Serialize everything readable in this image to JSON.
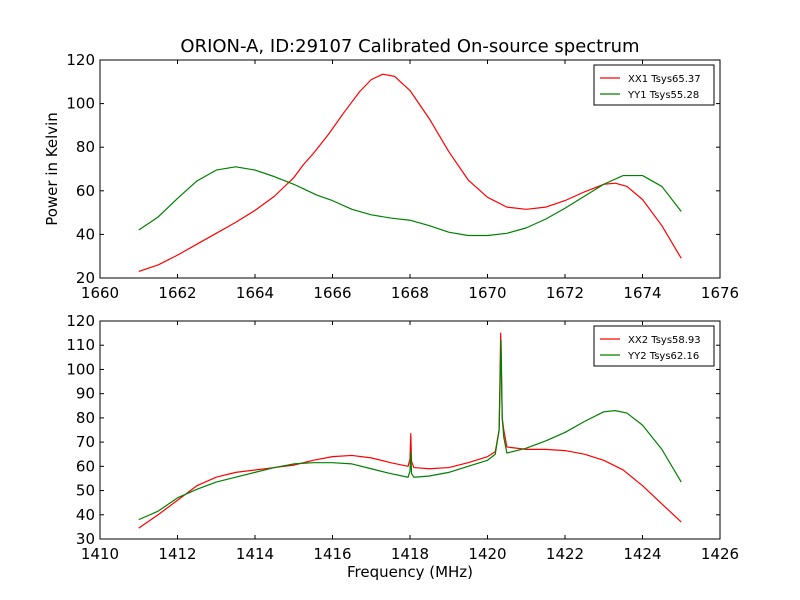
{
  "figure": {
    "title": "ORION-A, ID:29107 Calibrated On-source spectrum"
  },
  "chart_data": [
    {
      "type": "line",
      "title": "ORION-A, ID:29107 Calibrated On-source spectrum",
      "xlabel": "",
      "ylabel": "Power in Kelvin",
      "xlim": [
        1660,
        1676
      ],
      "ylim": [
        20,
        120
      ],
      "xticks": [
        1660,
        1662,
        1664,
        1666,
        1668,
        1670,
        1672,
        1674,
        1676
      ],
      "yticks": [
        20,
        40,
        60,
        80,
        100,
        120
      ],
      "grid": false,
      "legend_position": "top-right",
      "series": [
        {
          "name": "XX1 Tsys65.37",
          "color": "#ff0000",
          "points": [
            [
              1661.0,
              23
            ],
            [
              1661.5,
              26
            ],
            [
              1662.0,
              30.5
            ],
            [
              1662.5,
              35.5
            ],
            [
              1663.0,
              40.5
            ],
            [
              1663.5,
              45.5
            ],
            [
              1664.0,
              51
            ],
            [
              1664.5,
              57.5
            ],
            [
              1665.0,
              66
            ],
            [
              1665.25,
              72
            ],
            [
              1665.5,
              77
            ],
            [
              1665.9,
              86
            ],
            [
              1666.3,
              96
            ],
            [
              1666.7,
              105.5
            ],
            [
              1667.0,
              111
            ],
            [
              1667.3,
              113.5
            ],
            [
              1667.6,
              112.5
            ],
            [
              1668.0,
              106
            ],
            [
              1668.5,
              93
            ],
            [
              1669.0,
              78
            ],
            [
              1669.5,
              65
            ],
            [
              1670.0,
              57
            ],
            [
              1670.5,
              52.5
            ],
            [
              1671.0,
              51.5
            ],
            [
              1671.5,
              52.5
            ],
            [
              1672.0,
              55.5
            ],
            [
              1672.5,
              59.5
            ],
            [
              1673.0,
              63
            ],
            [
              1673.3,
              63.5
            ],
            [
              1673.6,
              62
            ],
            [
              1674.0,
              56
            ],
            [
              1674.5,
              44
            ],
            [
              1675.0,
              29
            ]
          ]
        },
        {
          "name": "YY1 Tsys55.28",
          "color": "#008000",
          "points": [
            [
              1661.0,
              42
            ],
            [
              1661.5,
              48
            ],
            [
              1662.0,
              56.5
            ],
            [
              1662.5,
              64.5
            ],
            [
              1663.0,
              69.5
            ],
            [
              1663.5,
              71
            ],
            [
              1664.0,
              69.5
            ],
            [
              1664.5,
              66.5
            ],
            [
              1665.0,
              63
            ],
            [
              1665.3,
              60.5
            ],
            [
              1665.6,
              58
            ],
            [
              1666.0,
              55.5
            ],
            [
              1666.5,
              51.5
            ],
            [
              1667.0,
              49
            ],
            [
              1667.5,
              47.5
            ],
            [
              1668.0,
              46.5
            ],
            [
              1668.5,
              44
            ],
            [
              1669.0,
              41
            ],
            [
              1669.5,
              39.5
            ],
            [
              1670.0,
              39.5
            ],
            [
              1670.5,
              40.5
            ],
            [
              1671.0,
              43
            ],
            [
              1671.5,
              47
            ],
            [
              1672.0,
              52
            ],
            [
              1672.5,
              57.5
            ],
            [
              1673.0,
              63
            ],
            [
              1673.5,
              67
            ],
            [
              1674.0,
              67
            ],
            [
              1674.5,
              62
            ],
            [
              1675.0,
              50.5
            ]
          ]
        }
      ]
    },
    {
      "type": "line",
      "title": "",
      "xlabel": "Frequency (MHz)",
      "ylabel": "",
      "xlim": [
        1410,
        1426
      ],
      "ylim": [
        30,
        120
      ],
      "xticks": [
        1410,
        1412,
        1414,
        1416,
        1418,
        1420,
        1422,
        1424,
        1426
      ],
      "yticks": [
        30,
        40,
        50,
        60,
        70,
        80,
        90,
        100,
        110,
        120
      ],
      "grid": false,
      "legend_position": "top-right",
      "series": [
        {
          "name": "XX2 Tsys58.93",
          "color": "#ff0000",
          "points": [
            [
              1411.0,
              34.5
            ],
            [
              1411.5,
              40
            ],
            [
              1412.0,
              46
            ],
            [
              1412.5,
              52
            ],
            [
              1413.0,
              55.5
            ],
            [
              1413.5,
              57.5
            ],
            [
              1414.0,
              58.5
            ],
            [
              1414.5,
              59.5
            ],
            [
              1415.0,
              60.5
            ],
            [
              1415.5,
              62.5
            ],
            [
              1416.0,
              64
            ],
            [
              1416.5,
              64.5
            ],
            [
              1417.0,
              63.5
            ],
            [
              1417.5,
              61.5
            ],
            [
              1417.95,
              60
            ],
            [
              1418.0,
              63
            ],
            [
              1418.02,
              73.5
            ],
            [
              1418.04,
              62
            ],
            [
              1418.1,
              59.5
            ],
            [
              1418.5,
              59
            ],
            [
              1419.0,
              59.5
            ],
            [
              1419.5,
              61.5
            ],
            [
              1420.0,
              64
            ],
            [
              1420.2,
              66
            ],
            [
              1420.3,
              75
            ],
            [
              1420.34,
              115
            ],
            [
              1420.38,
              80
            ],
            [
              1420.42,
              75
            ],
            [
              1420.5,
              68
            ],
            [
              1421.0,
              67
            ],
            [
              1421.5,
              67
            ],
            [
              1422.0,
              66.5
            ],
            [
              1422.5,
              65
            ],
            [
              1423.0,
              62.5
            ],
            [
              1423.5,
              58.5
            ],
            [
              1424.0,
              52
            ],
            [
              1424.5,
              44.5
            ],
            [
              1425.0,
              37
            ]
          ]
        },
        {
          "name": "YY2 Tsys62.16",
          "color": "#008000",
          "points": [
            [
              1411.0,
              38
            ],
            [
              1411.5,
              41.5
            ],
            [
              1412.0,
              47
            ],
            [
              1412.5,
              50.5
            ],
            [
              1413.0,
              53.5
            ],
            [
              1413.5,
              55.5
            ],
            [
              1414.0,
              57.5
            ],
            [
              1414.5,
              59.5
            ],
            [
              1415.0,
              61
            ],
            [
              1415.5,
              61.5
            ],
            [
              1416.0,
              61.5
            ],
            [
              1416.5,
              61
            ],
            [
              1417.0,
              59
            ],
            [
              1417.5,
              57
            ],
            [
              1417.95,
              55.5
            ],
            [
              1418.0,
              58
            ],
            [
              1418.02,
              66
            ],
            [
              1418.04,
              57
            ],
            [
              1418.1,
              55.5
            ],
            [
              1418.5,
              56
            ],
            [
              1419.0,
              57.5
            ],
            [
              1419.5,
              60
            ],
            [
              1420.0,
              62.5
            ],
            [
              1420.2,
              65
            ],
            [
              1420.3,
              75
            ],
            [
              1420.35,
              112
            ],
            [
              1420.38,
              80
            ],
            [
              1420.42,
              72
            ],
            [
              1420.5,
              65.5
            ],
            [
              1421.0,
              67.5
            ],
            [
              1421.5,
              70.5
            ],
            [
              1422.0,
              74
            ],
            [
              1422.5,
              78.5
            ],
            [
              1423.0,
              82.5
            ],
            [
              1423.3,
              83
            ],
            [
              1423.6,
              82
            ],
            [
              1424.0,
              77
            ],
            [
              1424.5,
              67
            ],
            [
              1425.0,
              53.5
            ]
          ]
        }
      ]
    }
  ]
}
